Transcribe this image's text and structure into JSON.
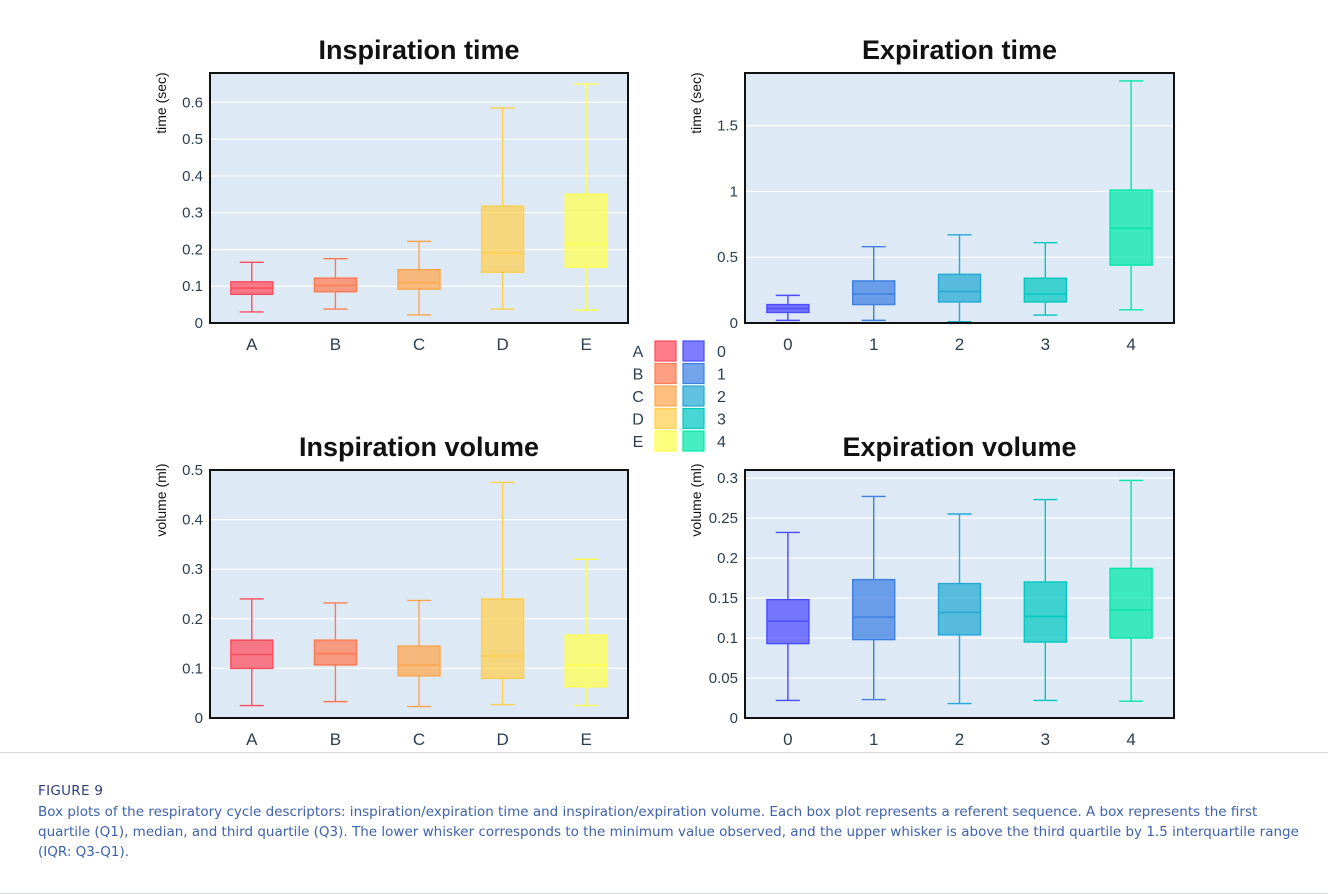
{
  "figure": {
    "label": "FIGURE 9",
    "caption": "Box plots of the respiratory cycle descriptors: inspiration/expiration time and inspiration/expiration volume. Each box plot represents a referent sequence. A box represents the first quartile (Q1), median, and third quartile (Q3). The lower whisker corresponds to the minimum value observed, and the upper whisker is above the third quartile by 1.5 interquartile range (IQR: Q3-Q1)."
  },
  "colors": {
    "A": "#ff4b5c",
    "B": "#ff7a52",
    "C": "#ffa64d",
    "D": "#ffcf4d",
    "E": "#ffff4d",
    "0": "#4b4bff",
    "1": "#3d7fe3",
    "2": "#22a9d6",
    "3": "#00c8c0",
    "4": "#00e8a8",
    "plot_bg": "#dde9f4",
    "axis_text": "#2c3e50"
  },
  "legend": {
    "left": [
      "A",
      "B",
      "C",
      "D",
      "E"
    ],
    "right": [
      "0",
      "1",
      "2",
      "3",
      "4"
    ]
  },
  "chart_data": [
    {
      "type": "box",
      "title": "Inspiration time",
      "ylabel": "time (sec)",
      "xlabel": "",
      "ylim": [
        0,
        0.68
      ],
      "yticks": [
        0,
        0.1,
        0.2,
        0.3,
        0.4,
        0.5,
        0.6
      ],
      "ytick_labels": [
        "0",
        "0.1",
        "0.2",
        "0.3",
        "0.4",
        "0.5",
        "0.6"
      ],
      "categories": [
        "A",
        "B",
        "C",
        "D",
        "E"
      ],
      "boxes": [
        {
          "min": 0.03,
          "q1": 0.078,
          "median": 0.095,
          "q3": 0.112,
          "max": 0.165
        },
        {
          "min": 0.038,
          "q1": 0.085,
          "median": 0.102,
          "q3": 0.122,
          "max": 0.175
        },
        {
          "min": 0.022,
          "q1": 0.092,
          "median": 0.11,
          "q3": 0.145,
          "max": 0.222
        },
        {
          "min": 0.038,
          "q1": 0.138,
          "median": 0.19,
          "q3": 0.318,
          "max": 0.585
        },
        {
          "min": 0.035,
          "q1": 0.152,
          "median": 0.215,
          "q3": 0.35,
          "max": 0.65
        }
      ]
    },
    {
      "type": "box",
      "title": "Expiration time",
      "ylabel": "time (sec)",
      "xlabel": "",
      "ylim": [
        0,
        1.9
      ],
      "yticks": [
        0,
        0.5,
        1,
        1.5
      ],
      "ytick_labels": [
        "0",
        "0.5",
        "1",
        "1.5"
      ],
      "categories": [
        "0",
        "1",
        "2",
        "3",
        "4"
      ],
      "boxes": [
        {
          "min": 0.02,
          "q1": 0.08,
          "median": 0.11,
          "q3": 0.14,
          "max": 0.21
        },
        {
          "min": 0.02,
          "q1": 0.14,
          "median": 0.22,
          "q3": 0.32,
          "max": 0.58
        },
        {
          "min": 0.01,
          "q1": 0.16,
          "median": 0.24,
          "q3": 0.37,
          "max": 0.67
        },
        {
          "min": 0.06,
          "q1": 0.16,
          "median": 0.22,
          "q3": 0.34,
          "max": 0.61
        },
        {
          "min": 0.1,
          "q1": 0.44,
          "median": 0.72,
          "q3": 1.01,
          "max": 1.84
        }
      ]
    },
    {
      "type": "box",
      "title": "Inspiration volume",
      "ylabel": "volume (ml)",
      "xlabel": "",
      "ylim": [
        0,
        0.5
      ],
      "yticks": [
        0,
        0.1,
        0.2,
        0.3,
        0.4,
        0.5
      ],
      "ytick_labels": [
        "0",
        "0.1",
        "0.2",
        "0.3",
        "0.4",
        "0.5"
      ],
      "categories": [
        "A",
        "B",
        "C",
        "D",
        "E"
      ],
      "boxes": [
        {
          "min": 0.025,
          "q1": 0.1,
          "median": 0.128,
          "q3": 0.157,
          "max": 0.24
        },
        {
          "min": 0.033,
          "q1": 0.107,
          "median": 0.13,
          "q3": 0.157,
          "max": 0.232
        },
        {
          "min": 0.023,
          "q1": 0.085,
          "median": 0.107,
          "q3": 0.145,
          "max": 0.237
        },
        {
          "min": 0.027,
          "q1": 0.08,
          "median": 0.125,
          "q3": 0.24,
          "max": 0.475
        },
        {
          "min": 0.025,
          "q1": 0.063,
          "median": 0.107,
          "q3": 0.167,
          "max": 0.32
        }
      ]
    },
    {
      "type": "box",
      "title": "Expiration volume",
      "ylabel": "volume (ml)",
      "xlabel": "",
      "ylim": [
        0,
        0.31
      ],
      "yticks": [
        0,
        0.05,
        0.1,
        0.15,
        0.2,
        0.25,
        0.3
      ],
      "ytick_labels": [
        "0",
        "0.05",
        "0.1",
        "0.15",
        "0.2",
        "0.25",
        "0.3"
      ],
      "categories": [
        "0",
        "1",
        "2",
        "3",
        "4"
      ],
      "boxes": [
        {
          "min": 0.022,
          "q1": 0.093,
          "median": 0.121,
          "q3": 0.148,
          "max": 0.232
        },
        {
          "min": 0.023,
          "q1": 0.098,
          "median": 0.126,
          "q3": 0.173,
          "max": 0.277
        },
        {
          "min": 0.018,
          "q1": 0.104,
          "median": 0.132,
          "q3": 0.168,
          "max": 0.255
        },
        {
          "min": 0.022,
          "q1": 0.095,
          "median": 0.127,
          "q3": 0.17,
          "max": 0.273
        },
        {
          "min": 0.021,
          "q1": 0.1,
          "median": 0.135,
          "q3": 0.187,
          "max": 0.297
        }
      ]
    }
  ]
}
